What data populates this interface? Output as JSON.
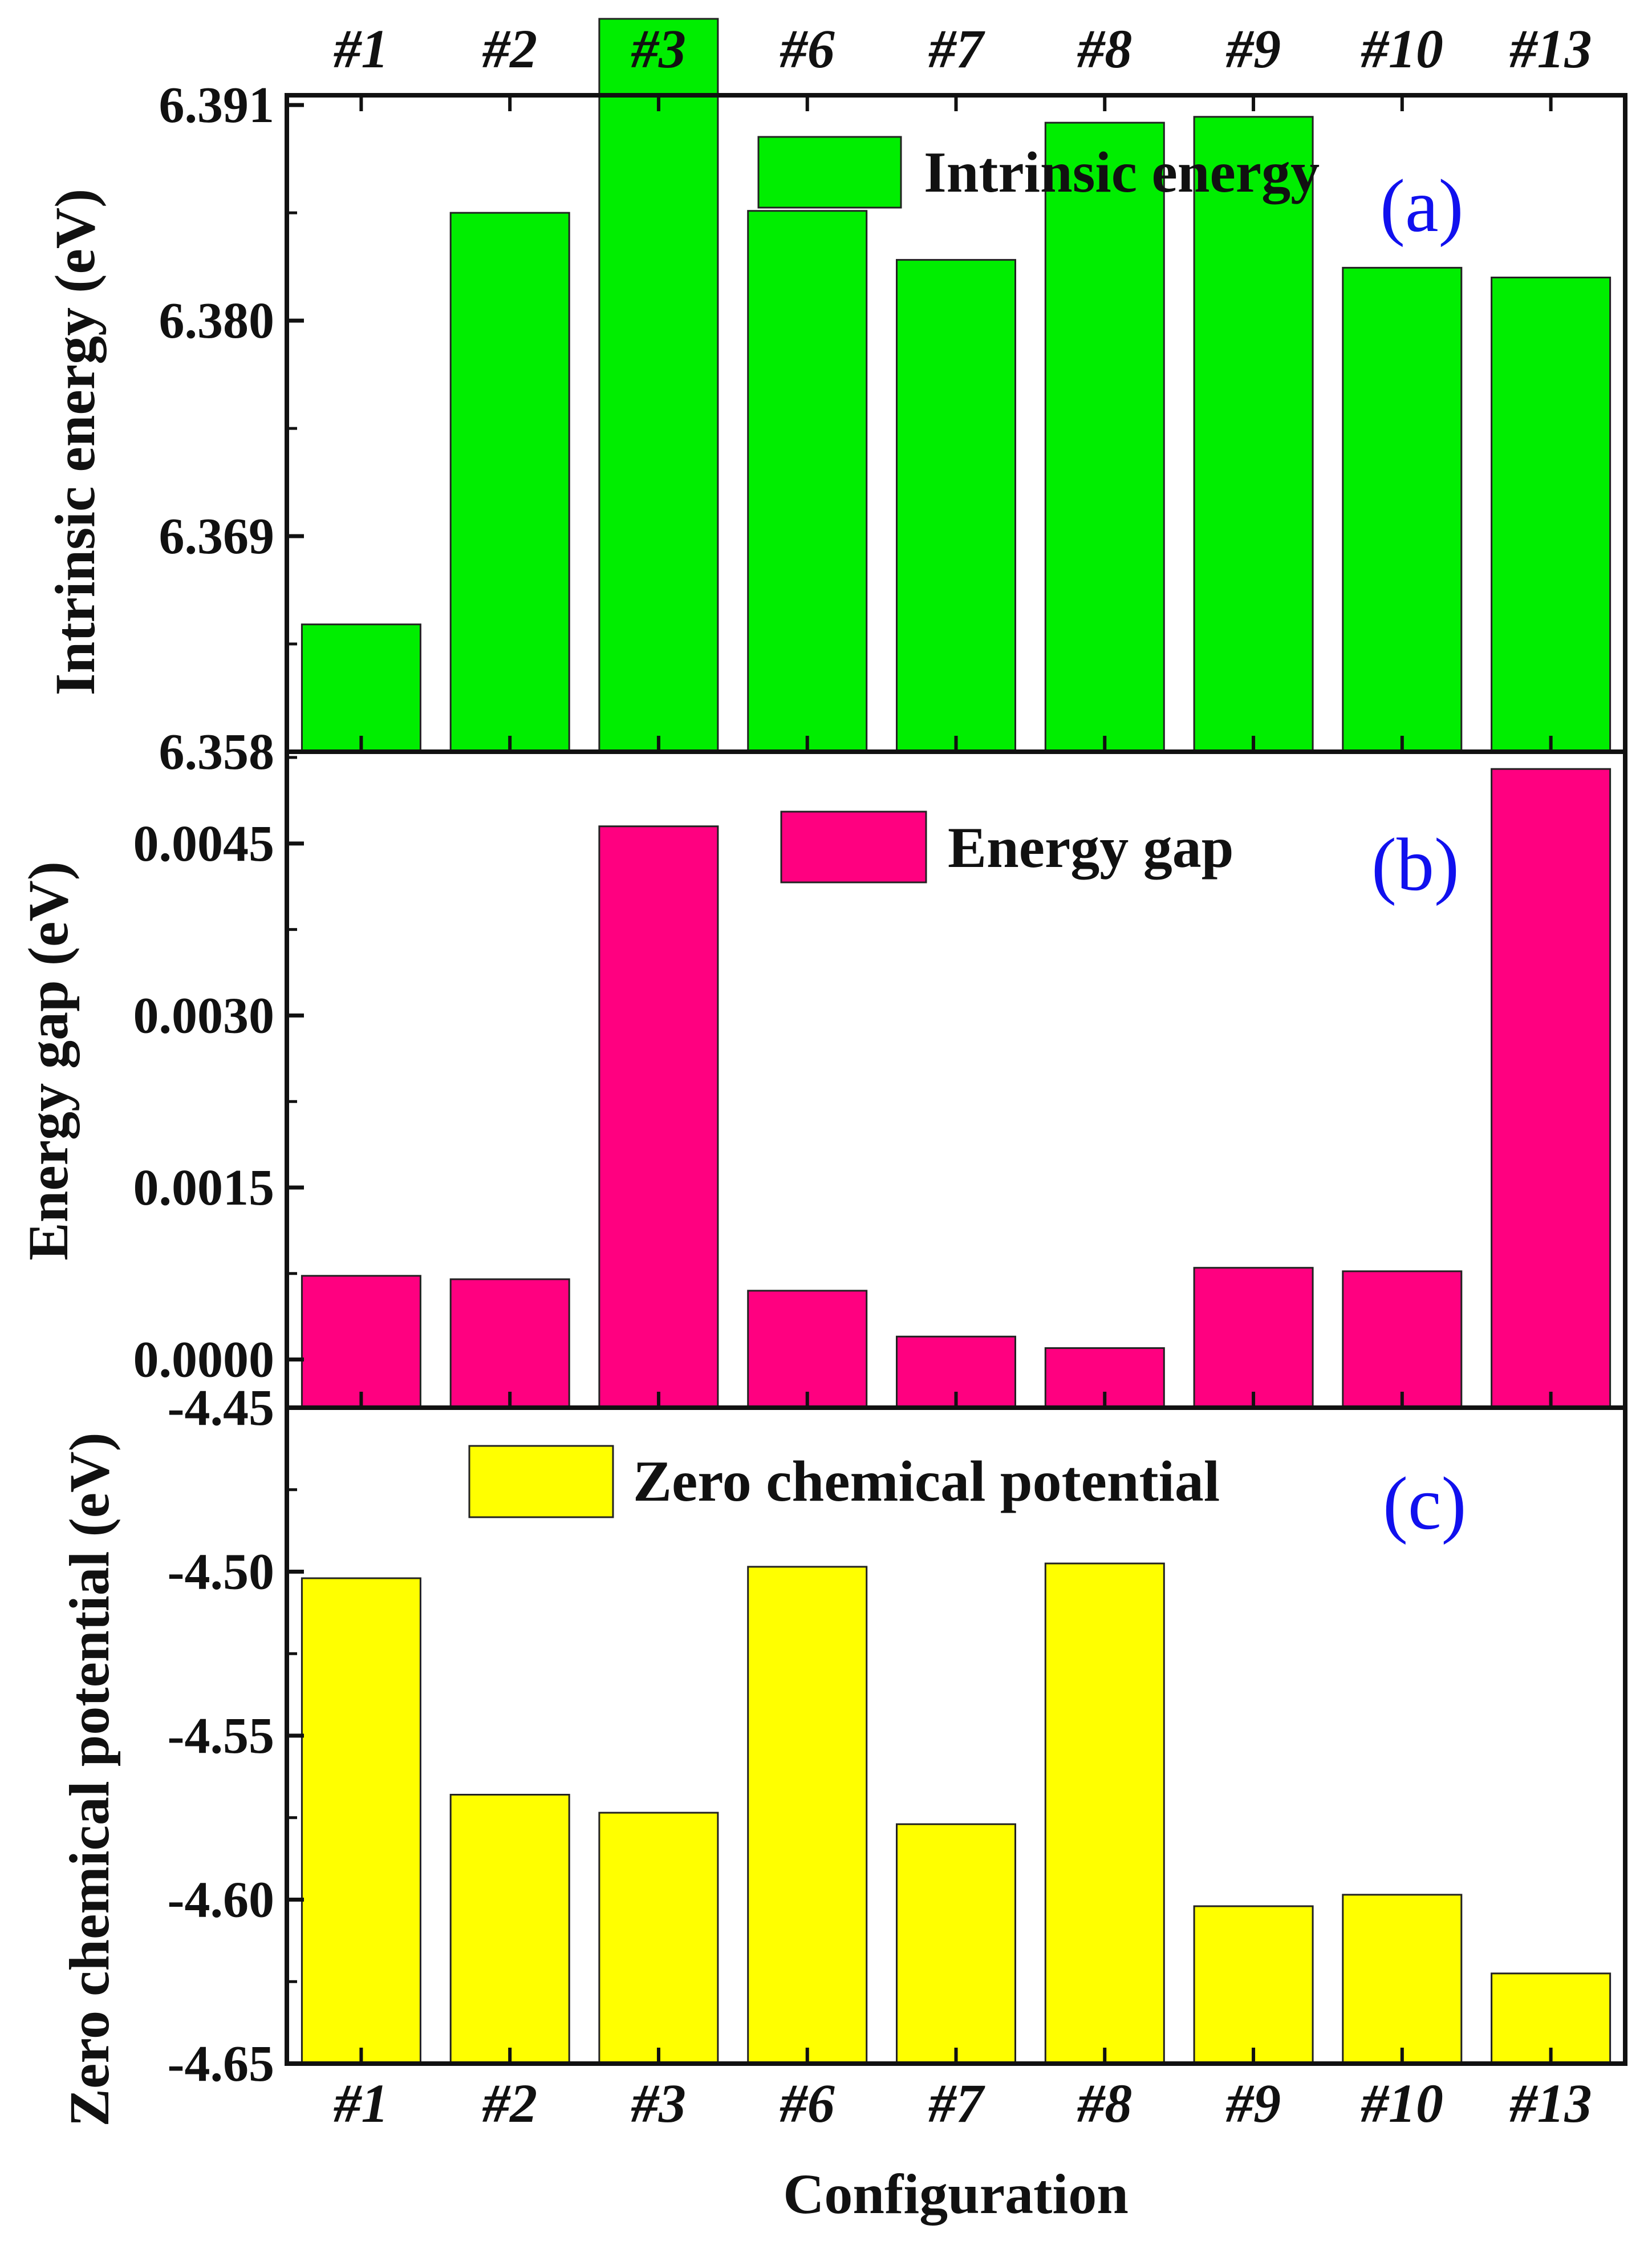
{
  "categories": [
    "#1",
    "#2",
    "#3",
    "#6",
    "#7",
    "#8",
    "#9",
    "#10",
    "#13"
  ],
  "xlabel": "Configuration",
  "chart_data": [
    {
      "type": "bar",
      "panel_tag": "(a)",
      "legend": "Intrinsic energy",
      "ylabel": "Intrinsic energy (eV)",
      "ylim": [
        6.358,
        6.3915
      ],
      "yticks": [
        6.358,
        6.369,
        6.38,
        6.391
      ],
      "ytick_labels": [
        "6.358",
        "6.369",
        "6.380",
        "6.391"
      ],
      "categories": [
        "#1",
        "#2",
        "#3",
        "#6",
        "#7",
        "#8",
        "#9",
        "#10",
        "#13"
      ],
      "values": [
        6.3645,
        6.3855,
        6.3954,
        6.3856,
        6.3831,
        6.3901,
        6.3904,
        6.3827,
        6.3822
      ],
      "color": "#00EE00"
    },
    {
      "type": "bar",
      "panel_tag": "(b)",
      "legend": "Energy gap",
      "ylabel": "Energy gap (eV)",
      "ylim": [
        -0.00042,
        0.0053
      ],
      "yticks": [
        0.0,
        0.0015,
        0.003,
        0.0045
      ],
      "ytick_labels": [
        "0.0000",
        "0.0015",
        "0.0030",
        "0.0045"
      ],
      "categories": [
        "#1",
        "#2",
        "#3",
        "#6",
        "#7",
        "#8",
        "#9",
        "#10",
        "#13"
      ],
      "values": [
        0.00073,
        0.0007,
        0.00465,
        0.0006,
        0.0002,
        0.0001,
        0.0008,
        0.00077,
        0.00515
      ],
      "color": "#FF0080"
    },
    {
      "type": "bar",
      "panel_tag": "(c)",
      "legend": "Zero chemical potential",
      "ylabel": "Zero chemical potential (eV)",
      "ylim": [
        -4.65,
        -4.45
      ],
      "yticks": [
        -4.65,
        -4.6,
        -4.55,
        -4.5,
        -4.45
      ],
      "ytick_labels": [
        "-4.65",
        "-4.60",
        "-4.55",
        "-4.50",
        "-4.45"
      ],
      "categories": [
        "#1",
        "#2",
        "#3",
        "#6",
        "#7",
        "#8",
        "#9",
        "#10",
        "#13"
      ],
      "values": [
        -4.502,
        -4.568,
        -4.5735,
        -4.4985,
        -4.577,
        -4.4975,
        -4.602,
        -4.5985,
        -4.6225
      ],
      "color": "#FFFF00"
    }
  ]
}
